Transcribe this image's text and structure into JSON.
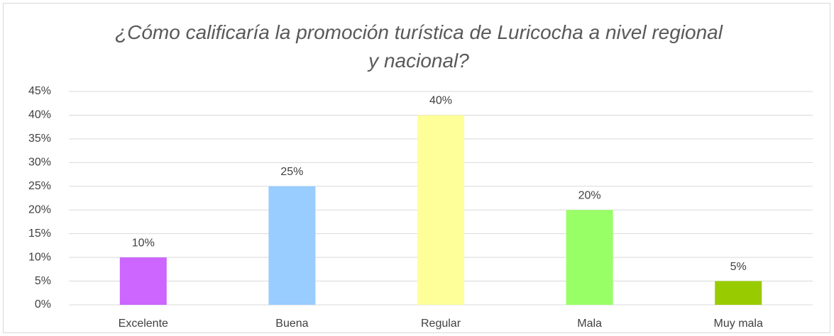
{
  "chart_data": {
    "type": "bar",
    "title": "¿Cómo calificaría la promoción turística de Luricocha a nivel regional y nacional?",
    "categories": [
      "Excelente",
      "Buena",
      "Regular",
      "Mala",
      "Muy mala"
    ],
    "values": [
      10,
      25,
      40,
      20,
      5
    ],
    "value_labels": [
      "10%",
      "25%",
      "40%",
      "20%",
      "5%"
    ],
    "colors": [
      "#cc66ff",
      "#99ccff",
      "#ffff99",
      "#99ff66",
      "#99cc00"
    ],
    "ylim": [
      0,
      45
    ],
    "yticks": [
      {
        "value": 0,
        "label": "0%"
      },
      {
        "value": 5,
        "label": "5%"
      },
      {
        "value": 10,
        "label": "10%"
      },
      {
        "value": 15,
        "label": "15%"
      },
      {
        "value": 20,
        "label": "20%"
      },
      {
        "value": 25,
        "label": "25%"
      },
      {
        "value": 30,
        "label": "30%"
      },
      {
        "value": 35,
        "label": "35%"
      },
      {
        "value": 40,
        "label": "40%"
      },
      {
        "value": 45,
        "label": "45%"
      }
    ],
    "grid": true
  }
}
